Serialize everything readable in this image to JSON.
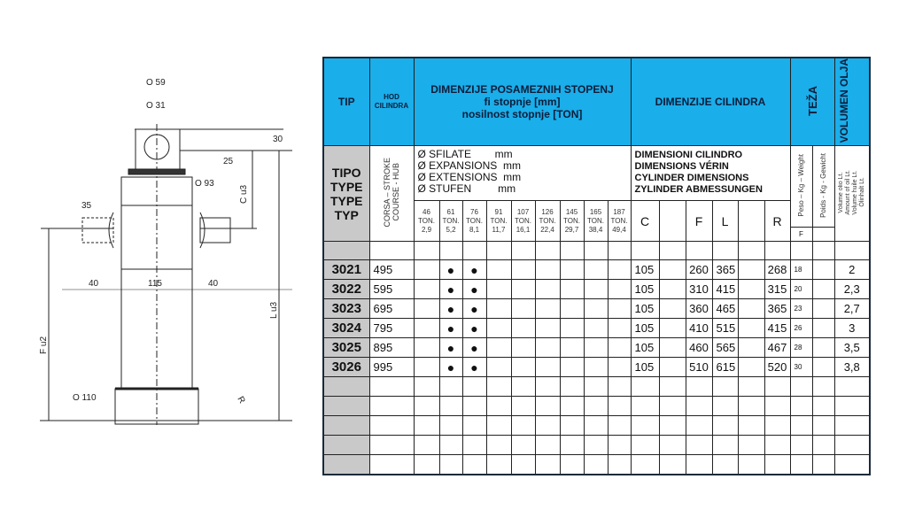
{
  "drawing": {
    "labels": {
      "d59": "O 59",
      "d31": "O 31",
      "d93": "O 93",
      "d110": "O 110",
      "h30": "30",
      "h25": "25",
      "h35": "35",
      "w40l": "40",
      "w115": "115",
      "w40r": "40",
      "c": "C  u3",
      "f": "F  u2",
      "l": "L  u3",
      "r": "R"
    }
  },
  "table": {
    "header": {
      "tip": "TIP",
      "hod": "HOD CILINDRA",
      "stages": "DIMENZIJE POSAMEZNIH STOPENJ\nfi stopnje [mm]\nnosilnost stopnje [TON]",
      "cylinder": "DIMENZIJE CILINDRA",
      "weight": "TEŽA",
      "volume": "VOLUMEN OLJA"
    },
    "sub": {
      "type": "TIPO\nTYPE\nTYPE\nTYP",
      "stroke": "CORSA – STROKE\nCOURSE - HUB",
      "stages_desc": "Ø SFILATE        mm\nØ EXPANSIONS  mm\nØ EXTENSIONS  mm\nØ STUFEN         mm",
      "cyl_desc": "DIMENSIONI CILINDRO\nDIMENSIONS VÉRIN\nCYLINDER DIMENSIONS\nZYLINDER ABMESSUNGEN",
      "weight1": "Peso – Kg – Weight",
      "weight2": "Poids - Kg - Gewicht",
      "weight_f": "F",
      "volume_desc": "Volume olio Lt.\nAmount of oil Lt.\nVolume huile Lt.\nÖlinhalt Lt."
    },
    "stages": [
      {
        "d": "46",
        "t": "TON.",
        "c": "2,9"
      },
      {
        "d": "61",
        "t": "TON.",
        "c": "5,2"
      },
      {
        "d": "76",
        "t": "TON.",
        "c": "8,1"
      },
      {
        "d": "91",
        "t": "TON.",
        "c": "11,7"
      },
      {
        "d": "107",
        "t": "TON.",
        "c": "16,1"
      },
      {
        "d": "126",
        "t": "TON.",
        "c": "22,4"
      },
      {
        "d": "145",
        "t": "TON.",
        "c": "29,7"
      },
      {
        "d": "165",
        "t": "TON.",
        "c": "38,4"
      },
      {
        "d": "187",
        "t": "TON.",
        "c": "49,4"
      }
    ],
    "dim_cols": [
      "C",
      "",
      "F",
      "L",
      "",
      "R"
    ],
    "rows": [
      {
        "tip": "3021",
        "hod": "495",
        "stages": [
          "",
          "●",
          "●",
          "",
          "",
          "",
          "",
          "",
          ""
        ],
        "c": "105",
        "f": "260",
        "l": "365",
        "r": "268",
        "kg": "18",
        "vol": "2"
      },
      {
        "tip": "3022",
        "hod": "595",
        "stages": [
          "",
          "●",
          "●",
          "",
          "",
          "",
          "",
          "",
          ""
        ],
        "c": "105",
        "f": "310",
        "l": "415",
        "r": "315",
        "kg": "20",
        "vol": "2,3"
      },
      {
        "tip": "3023",
        "hod": "695",
        "stages": [
          "",
          "●",
          "●",
          "",
          "",
          "",
          "",
          "",
          ""
        ],
        "c": "105",
        "f": "360",
        "l": "465",
        "r": "365",
        "kg": "23",
        "vol": "2,7"
      },
      {
        "tip": "3024",
        "hod": "795",
        "stages": [
          "",
          "●",
          "●",
          "",
          "",
          "",
          "",
          "",
          ""
        ],
        "c": "105",
        "f": "410",
        "l": "515",
        "r": "415",
        "kg": "26",
        "vol": "3"
      },
      {
        "tip": "3025",
        "hod": "895",
        "stages": [
          "",
          "●",
          "●",
          "",
          "",
          "",
          "",
          "",
          ""
        ],
        "c": "105",
        "f": "460",
        "l": "565",
        "r": "467",
        "kg": "28",
        "vol": "3,5"
      },
      {
        "tip": "3026",
        "hod": "995",
        "stages": [
          "",
          "●",
          "●",
          "",
          "",
          "",
          "",
          "",
          ""
        ],
        "c": "105",
        "f": "510",
        "l": "615",
        "r": "520",
        "kg": "30",
        "vol": "3,8"
      }
    ],
    "colors": {
      "header_bg": "#1aaeea",
      "type_col_bg": "#c9c9c9"
    }
  }
}
